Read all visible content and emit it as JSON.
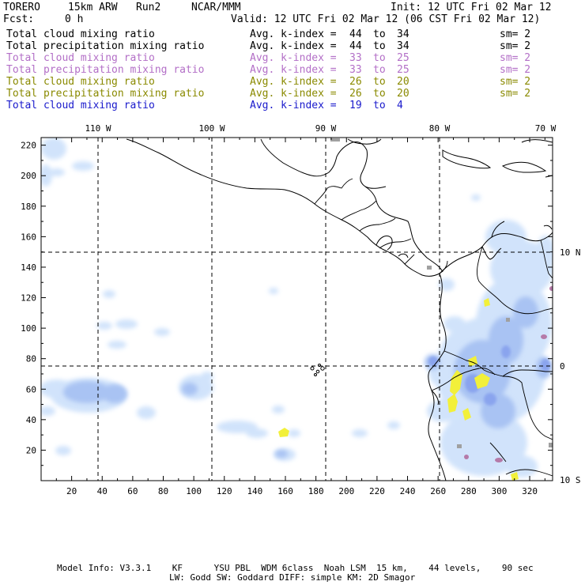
{
  "header": {
    "model": "TORERO",
    "resolution": "15km ARW",
    "run": "Run2",
    "org": "NCAR/MMM",
    "init": "Init: 12 UTC Fri 02 Mar 12",
    "fcst_label": "Fcst:",
    "fcst_value": "0 h",
    "valid": "Valid: 12 UTC Fri 02 Mar 12 (06 CST Fri 02 Mar 12)"
  },
  "legend_rows": [
    {
      "field": "Total cloud mixing ratio",
      "kindex_label": "Avg. k-index =",
      "k_from": "44",
      "to": "to",
      "k_to": "34",
      "smooth": "sm= 2",
      "color": "#000000"
    },
    {
      "field": "Total precipitation mixing ratio",
      "kindex_label": "Avg. k-index =",
      "k_from": "44",
      "to": "to",
      "k_to": "34",
      "smooth": "sm= 2",
      "color": "#000000"
    },
    {
      "field": "Total cloud mixing ratio",
      "kindex_label": "Avg. k-index =",
      "k_from": "33",
      "to": "to",
      "k_to": "25",
      "smooth": "sm= 2",
      "color": "#b36fc7"
    },
    {
      "field": "Total precipitation mixing ratio",
      "kindex_label": "Avg. k-index =",
      "k_from": "33",
      "to": "to",
      "k_to": "25",
      "smooth": "sm= 2",
      "color": "#b36fc7"
    },
    {
      "field": "Total cloud mixing ratio",
      "kindex_label": "Avg. k-index =",
      "k_from": "26",
      "to": "to",
      "k_to": "20",
      "smooth": "sm= 2",
      "color": "#8a8a00"
    },
    {
      "field": "Total precipitation mixing ratio",
      "kindex_label": "Avg. k-index =",
      "k_from": "26",
      "to": "to",
      "k_to": "20",
      "smooth": "sm= 2",
      "color": "#8a8a00"
    },
    {
      "field": "Total cloud mixing ratio",
      "kindex_label": "Avg. k-index =",
      "k_from": "19",
      "to": "to",
      "k_to": "4",
      "smooth": "",
      "color": "#1a1acc"
    }
  ],
  "map": {
    "x_ticks": [
      "20",
      "40",
      "60",
      "80",
      "100",
      "120",
      "140",
      "160",
      "180",
      "200",
      "220",
      "240",
      "260",
      "280",
      "300",
      "320"
    ],
    "y_ticks": [
      "20",
      "40",
      "60",
      "80",
      "100",
      "120",
      "140",
      "160",
      "180",
      "200",
      "220"
    ],
    "lon_labels": [
      "110 W",
      "100 W",
      "90 W",
      "80 W",
      "70 W"
    ],
    "lat_labels": [
      "10 N",
      "0",
      "10 S"
    ],
    "colors": {
      "cloud_light": "#cfe2fb",
      "cloud_mid": "#a9c3f3",
      "cloud_dark": "#8aa4ee",
      "precip_yellow": "#f2f03a",
      "precip_purple": "#b57aa8",
      "precip_gray": "#a0a0a0"
    }
  },
  "footer": {
    "line1": "Model Info: V3.3.1    KF      YSU PBL  WDM 6class  Noah LSM  15 km,    44 levels,    90 sec",
    "line2": "LW: Godd SW: Goddard DIFF: simple KM: 2D Smagor"
  }
}
